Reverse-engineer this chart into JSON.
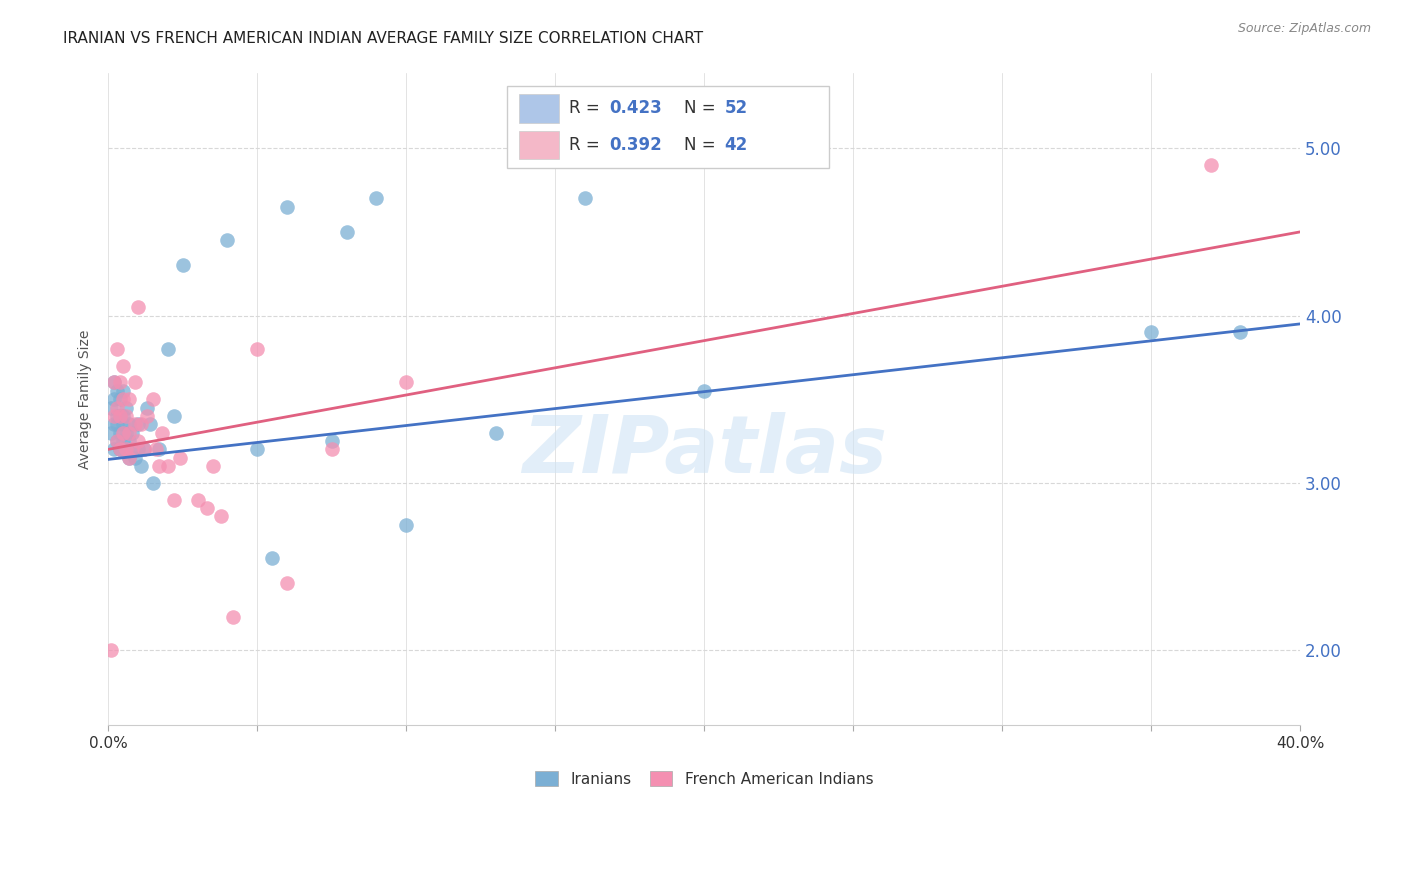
{
  "title": "IRANIAN VS FRENCH AMERICAN INDIAN AVERAGE FAMILY SIZE CORRELATION CHART",
  "source": "Source: ZipAtlas.com",
  "ylabel": "Average Family Size",
  "yticks": [
    2.0,
    3.0,
    4.0,
    5.0
  ],
  "xlim": [
    0.0,
    0.4
  ],
  "ylim": [
    1.55,
    5.45
  ],
  "watermark": "ZIPatlas",
  "iranian_color": "#7bafd4",
  "fai_color": "#f48fb1",
  "iranian_line_color": "#4472c4",
  "fai_line_color": "#e06080",
  "legend_iranian_color": "#aec6e8",
  "legend_fai_color": "#f4b8c8",
  "iranian_R": 0.423,
  "iranian_N": 52,
  "fai_R": 0.392,
  "fai_N": 42,
  "background_color": "#ffffff",
  "grid_color": "#d8d8d8",
  "title_fontsize": 11,
  "axis_label_fontsize": 10,
  "tick_fontsize": 11,
  "right_tick_color": "#4472c4",
  "legend_text_color": "#4472c4",
  "watermark_text": "ZIPatlas",
  "iranian_points_x": [
    0.001,
    0.001,
    0.002,
    0.002,
    0.002,
    0.002,
    0.003,
    0.003,
    0.003,
    0.003,
    0.004,
    0.004,
    0.004,
    0.004,
    0.004,
    0.005,
    0.005,
    0.005,
    0.005,
    0.006,
    0.006,
    0.006,
    0.007,
    0.007,
    0.007,
    0.008,
    0.008,
    0.009,
    0.01,
    0.01,
    0.011,
    0.012,
    0.013,
    0.014,
    0.015,
    0.017,
    0.02,
    0.022,
    0.025,
    0.04,
    0.05,
    0.055,
    0.06,
    0.075,
    0.08,
    0.09,
    0.1,
    0.13,
    0.16,
    0.2,
    0.35,
    0.38
  ],
  "iranian_points_y": [
    3.3,
    3.45,
    3.2,
    3.35,
    3.5,
    3.6,
    3.25,
    3.35,
    3.4,
    3.55,
    3.2,
    3.3,
    3.4,
    3.5,
    3.2,
    3.25,
    3.35,
    3.4,
    3.55,
    3.2,
    3.3,
    3.45,
    3.15,
    3.25,
    3.35,
    3.2,
    3.3,
    3.15,
    3.2,
    3.35,
    3.1,
    3.2,
    3.45,
    3.35,
    3.0,
    3.2,
    3.8,
    3.4,
    4.3,
    4.45,
    3.2,
    2.55,
    4.65,
    3.25,
    4.5,
    4.7,
    2.75,
    3.3,
    4.7,
    3.55,
    3.9,
    3.9
  ],
  "fai_points_x": [
    0.001,
    0.002,
    0.002,
    0.003,
    0.003,
    0.003,
    0.004,
    0.004,
    0.004,
    0.005,
    0.005,
    0.005,
    0.006,
    0.006,
    0.007,
    0.007,
    0.007,
    0.008,
    0.009,
    0.009,
    0.01,
    0.01,
    0.011,
    0.012,
    0.013,
    0.015,
    0.016,
    0.017,
    0.018,
    0.02,
    0.022,
    0.024,
    0.03,
    0.033,
    0.035,
    0.038,
    0.042,
    0.05,
    0.06,
    0.075,
    0.1,
    0.37
  ],
  "fai_points_y": [
    2.0,
    3.4,
    3.6,
    3.25,
    3.45,
    3.8,
    3.2,
    3.4,
    3.6,
    3.3,
    3.5,
    3.7,
    3.2,
    3.4,
    3.15,
    3.3,
    3.5,
    3.2,
    3.35,
    3.6,
    3.25,
    4.05,
    3.35,
    3.2,
    3.4,
    3.5,
    3.2,
    3.1,
    3.3,
    3.1,
    2.9,
    3.15,
    2.9,
    2.85,
    3.1,
    2.8,
    2.2,
    3.8,
    2.4,
    3.2,
    3.6,
    4.9
  ]
}
